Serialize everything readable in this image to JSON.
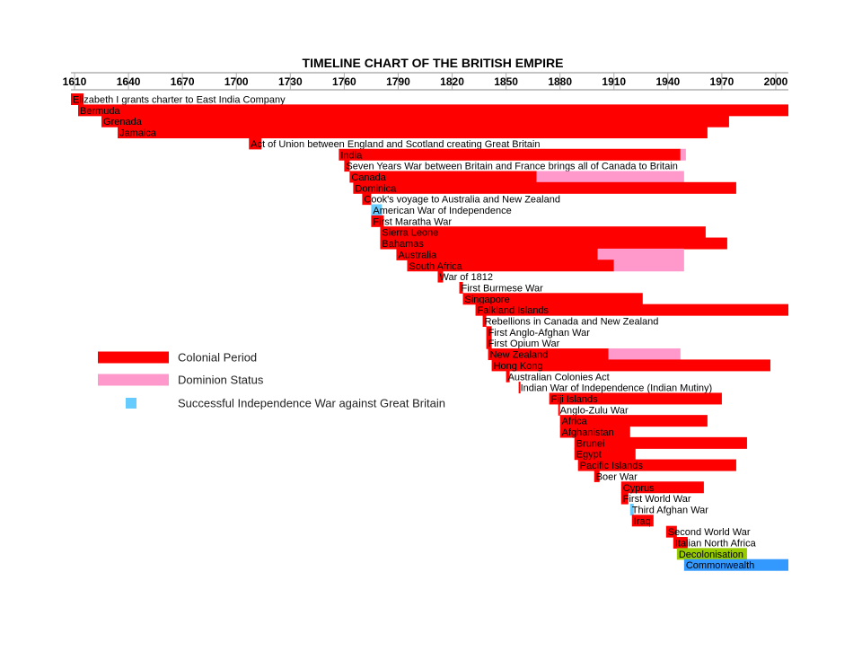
{
  "chart_data": {
    "type": "timeline",
    "title": "TIMELINE CHART OF THE BRITISH EMPIRE",
    "x_ticks": [
      1610,
      1640,
      1670,
      1700,
      1730,
      1760,
      1790,
      1820,
      1850,
      1880,
      1910,
      1940,
      1970,
      2000
    ],
    "xlim": [
      1608,
      2007
    ],
    "colors": {
      "colonial": "#ff0000",
      "dominion": "#ff99cc",
      "independence_war": "#66ccff",
      "decolonisation": "#99cc00",
      "commonwealth": "#3399ff"
    },
    "rows": [
      {
        "label": "Elizabeth I grants charter to East India Company",
        "segments": [
          {
            "start": 1600,
            "end": 1615,
            "kind": "colonial"
          }
        ]
      },
      {
        "label": "Bermuda",
        "segments": [
          {
            "start": 1612,
            "end": 2007,
            "kind": "colonial"
          }
        ]
      },
      {
        "label": "Grenada",
        "segments": [
          {
            "start": 1625,
            "end": 1974,
            "kind": "colonial"
          }
        ]
      },
      {
        "label": "Jamaica",
        "segments": [
          {
            "start": 1634,
            "end": 1962,
            "kind": "colonial"
          }
        ]
      },
      {
        "label": "Act of Union between England and Scotland creating Great Britain",
        "segments": [
          {
            "start": 1707,
            "end": 1714,
            "kind": "colonial"
          }
        ]
      },
      {
        "label": "India",
        "segments": [
          {
            "start": 1757,
            "end": 1947,
            "kind": "colonial"
          },
          {
            "start": 1947,
            "end": 1950,
            "kind": "dominion"
          }
        ]
      },
      {
        "label": "Seven Years War between Britain and France brings all of Canada to Britain",
        "segments": [
          {
            "start": 1760,
            "end": 1763,
            "kind": "colonial"
          }
        ]
      },
      {
        "label": "Canada",
        "segments": [
          {
            "start": 1763,
            "end": 1867,
            "kind": "colonial"
          },
          {
            "start": 1867,
            "end": 1949,
            "kind": "dominion"
          }
        ]
      },
      {
        "label": "Dominica",
        "segments": [
          {
            "start": 1765,
            "end": 1978,
            "kind": "colonial"
          }
        ]
      },
      {
        "label": "Cook's voyage to Australia and New Zealand",
        "segments": [
          {
            "start": 1770,
            "end": 1775,
            "kind": "colonial"
          }
        ]
      },
      {
        "label": "American War of Independence",
        "segments": [
          {
            "start": 1775,
            "end": 1781,
            "kind": "independence_war"
          }
        ]
      },
      {
        "label": "First Maratha War",
        "segments": [
          {
            "start": 1775,
            "end": 1782,
            "kind": "colonial"
          }
        ]
      },
      {
        "label": "Sierra Leone",
        "segments": [
          {
            "start": 1780,
            "end": 1961,
            "kind": "colonial"
          }
        ]
      },
      {
        "label": "Bahamas",
        "segments": [
          {
            "start": 1780,
            "end": 1973,
            "kind": "colonial"
          }
        ]
      },
      {
        "label": "Australia",
        "segments": [
          {
            "start": 1789,
            "end": 1901,
            "kind": "colonial"
          },
          {
            "start": 1901,
            "end": 1949,
            "kind": "dominion"
          }
        ]
      },
      {
        "label": "South Africa",
        "segments": [
          {
            "start": 1795,
            "end": 1910,
            "kind": "colonial"
          },
          {
            "start": 1910,
            "end": 1949,
            "kind": "dominion"
          }
        ]
      },
      {
        "label": "War of 1812",
        "segments": [
          {
            "start": 1812,
            "end": 1815,
            "kind": "colonial"
          }
        ]
      },
      {
        "label": "First Burmese War",
        "segments": [
          {
            "start": 1824,
            "end": 1826,
            "kind": "colonial"
          }
        ]
      },
      {
        "label": "Singapore",
        "segments": [
          {
            "start": 1826,
            "end": 1926,
            "kind": "colonial"
          }
        ]
      },
      {
        "label": "Falkland Islands",
        "segments": [
          {
            "start": 1833,
            "end": 2007,
            "kind": "colonial"
          }
        ]
      },
      {
        "label": "Rebellions in Canada and New Zealand",
        "segments": [
          {
            "start": 1837,
            "end": 1839,
            "kind": "colonial"
          }
        ]
      },
      {
        "label": "First Anglo-Afghan War",
        "segments": [
          {
            "start": 1839,
            "end": 1842,
            "kind": "colonial"
          }
        ]
      },
      {
        "label": "First Opium War",
        "segments": [
          {
            "start": 1839,
            "end": 1842,
            "kind": "colonial"
          }
        ]
      },
      {
        "label": "New Zealand",
        "segments": [
          {
            "start": 1840,
            "end": 1907,
            "kind": "colonial"
          },
          {
            "start": 1907,
            "end": 1947,
            "kind": "dominion"
          }
        ]
      },
      {
        "label": "Hong Kong",
        "segments": [
          {
            "start": 1842,
            "end": 1997,
            "kind": "colonial"
          }
        ]
      },
      {
        "label": "Australian Colonies Act",
        "segments": [
          {
            "start": 1850,
            "end": 1852,
            "kind": "colonial"
          }
        ]
      },
      {
        "label": "Indian War of Independence (Indian Mutiny)",
        "segments": [
          {
            "start": 1857,
            "end": 1858,
            "kind": "colonial"
          }
        ]
      },
      {
        "label": "Fiji Islands",
        "segments": [
          {
            "start": 1874,
            "end": 1970,
            "kind": "colonial"
          }
        ]
      },
      {
        "label": "Anglo-Zulu War",
        "segments": [
          {
            "start": 1879,
            "end": 1880,
            "kind": "colonial"
          }
        ]
      },
      {
        "label": "Africa",
        "segments": [
          {
            "start": 1880,
            "end": 1962,
            "kind": "colonial"
          }
        ]
      },
      {
        "label": "Afghanistan",
        "segments": [
          {
            "start": 1880,
            "end": 1919,
            "kind": "colonial"
          }
        ]
      },
      {
        "label": "Brunei",
        "segments": [
          {
            "start": 1888,
            "end": 1984,
            "kind": "colonial"
          }
        ]
      },
      {
        "label": "Egypt",
        "segments": [
          {
            "start": 1888,
            "end": 1922,
            "kind": "colonial"
          }
        ]
      },
      {
        "label": "Pacific Islands",
        "segments": [
          {
            "start": 1890,
            "end": 1978,
            "kind": "colonial"
          }
        ]
      },
      {
        "label": "Boer War",
        "segments": [
          {
            "start": 1899,
            "end": 1902,
            "kind": "colonial"
          }
        ]
      },
      {
        "label": "Cyprus",
        "segments": [
          {
            "start": 1914,
            "end": 1960,
            "kind": "colonial"
          }
        ]
      },
      {
        "label": "First World War",
        "segments": [
          {
            "start": 1914,
            "end": 1918,
            "kind": "colonial"
          }
        ]
      },
      {
        "label": "Third Afghan War",
        "segments": [
          {
            "start": 1919,
            "end": 1921,
            "kind": "independence_war"
          }
        ]
      },
      {
        "label": "Iraq",
        "segments": [
          {
            "start": 1920,
            "end": 1932,
            "kind": "colonial"
          }
        ]
      },
      {
        "label": "Second World War",
        "segments": [
          {
            "start": 1939,
            "end": 1945,
            "kind": "colonial"
          }
        ]
      },
      {
        "label": "Italian North Africa",
        "segments": [
          {
            "start": 1943,
            "end": 1951,
            "kind": "colonial"
          }
        ]
      },
      {
        "label": "Decolonisation",
        "segments": [
          {
            "start": 1945,
            "end": 1984,
            "kind": "decolonisation"
          }
        ]
      },
      {
        "label": "Commonwealth",
        "segments": [
          {
            "start": 1949,
            "end": 2007,
            "kind": "commonwealth"
          }
        ]
      }
    ],
    "legend": [
      {
        "kind": "colonial",
        "label": "Colonial Period"
      },
      {
        "kind": "dominion",
        "label": "Dominion Status"
      },
      {
        "kind": "independence_war",
        "label": "Successful Independence War against Great Britain"
      }
    ],
    "legend_position": "middle-left"
  }
}
